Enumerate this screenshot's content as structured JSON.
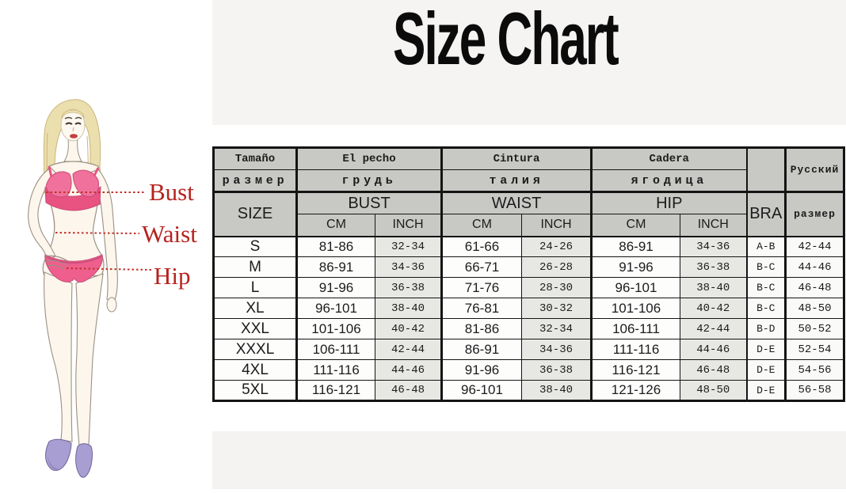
{
  "title": "Size Chart",
  "illustration": {
    "bust_label": "Bust",
    "waist_label": "Waist",
    "hip_label": "Hip"
  },
  "table": {
    "header": {
      "size_es": "Tamaño",
      "size_ru": "размер",
      "size_en": "SIZE",
      "bust_es": "El pecho",
      "bust_ru": "грудь",
      "bust_en": "BUST",
      "waist_es": "Cintura",
      "waist_ru": "талия",
      "waist_en": "WAIST",
      "hip_es": "Cadera",
      "hip_ru": "ягодица",
      "hip_en": "HIP",
      "bra": "BRA",
      "cm": "CM",
      "inch": "INCH",
      "russian_title": "Русский",
      "russian_size": "размер"
    },
    "rows": [
      {
        "size": "S",
        "bust_cm": "81-86",
        "bust_in": "32-34",
        "waist_cm": "61-66",
        "waist_in": "24-26",
        "hip_cm": "86-91",
        "hip_in": "34-36",
        "bra": "A-B",
        "rus": "42-44"
      },
      {
        "size": "M",
        "bust_cm": "86-91",
        "bust_in": "34-36",
        "waist_cm": "66-71",
        "waist_in": "26-28",
        "hip_cm": "91-96",
        "hip_in": "36-38",
        "bra": "B-C",
        "rus": "44-46"
      },
      {
        "size": "L",
        "bust_cm": "91-96",
        "bust_in": "36-38",
        "waist_cm": "71-76",
        "waist_in": "28-30",
        "hip_cm": "96-101",
        "hip_in": "38-40",
        "bra": "B-C",
        "rus": "46-48"
      },
      {
        "size": "XL",
        "bust_cm": "96-101",
        "bust_in": "38-40",
        "waist_cm": "76-81",
        "waist_in": "30-32",
        "hip_cm": "101-106",
        "hip_in": "40-42",
        "bra": "B-C",
        "rus": "48-50"
      },
      {
        "size": "XXL",
        "bust_cm": "101-106",
        "bust_in": "40-42",
        "waist_cm": "81-86",
        "waist_in": "32-34",
        "hip_cm": "106-111",
        "hip_in": "42-44",
        "bra": "B-D",
        "rus": "50-52"
      },
      {
        "size": "XXXL",
        "bust_cm": "106-111",
        "bust_in": "42-44",
        "waist_cm": "86-91",
        "waist_in": "34-36",
        "hip_cm": "111-116",
        "hip_in": "44-46",
        "bra": "D-E",
        "rus": "52-54"
      },
      {
        "size": "4XL",
        "bust_cm": "111-116",
        "bust_in": "44-46",
        "waist_cm": "91-96",
        "waist_in": "36-38",
        "hip_cm": "116-121",
        "hip_in": "46-48",
        "bra": "D-E",
        "rus": "54-56"
      },
      {
        "size": "5XL",
        "bust_cm": "116-121",
        "bust_in": "46-48",
        "waist_cm": "96-101",
        "waist_in": "38-40",
        "hip_cm": "121-126",
        "hip_in": "48-50",
        "bra": "D-E",
        "rus": "56-58"
      }
    ]
  },
  "colors": {
    "header_bg": "#c8c8c5",
    "inch_col_bg": "#e7e7e4",
    "band_bg": "#f4f3f1",
    "label_red": "#b5231f",
    "bikini_pink": "#ee5f8d",
    "shoe_purple": "#a99ed1",
    "border_black": "#141414"
  }
}
